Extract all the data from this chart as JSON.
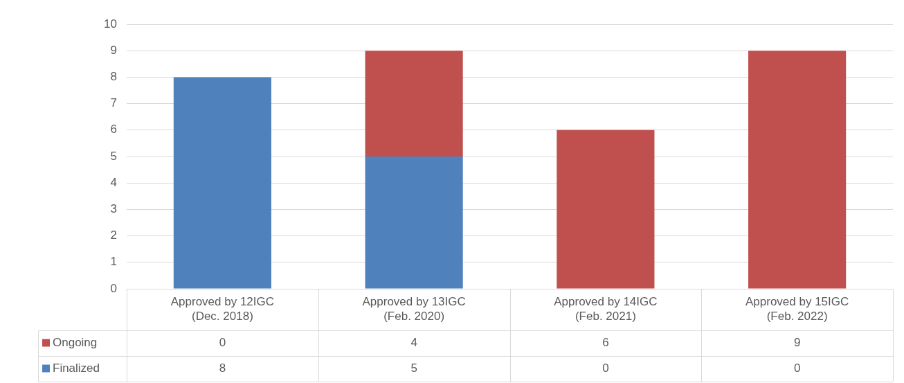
{
  "chart_data": {
    "type": "bar",
    "stacked": true,
    "categories": [
      "Approved by 12IGC (Dec. 2018)",
      "Approved by 13IGC (Feb. 2020)",
      "Approved by 14IGC (Feb. 2021)",
      "Approved by 15IGC (Feb. 2022)"
    ],
    "series": [
      {
        "name": "Finalized",
        "color": "#4f81bd",
        "values": [
          8,
          5,
          0,
          0
        ]
      },
      {
        "name": "Ongoing",
        "color": "#c0504d",
        "values": [
          0,
          4,
          6,
          9
        ]
      }
    ],
    "ylim": [
      0,
      10
    ],
    "yticks": [
      0,
      1,
      2,
      3,
      4,
      5,
      6,
      7,
      8,
      9,
      10
    ],
    "grid": "y",
    "legend": "bottom",
    "data_labels": true
  }
}
